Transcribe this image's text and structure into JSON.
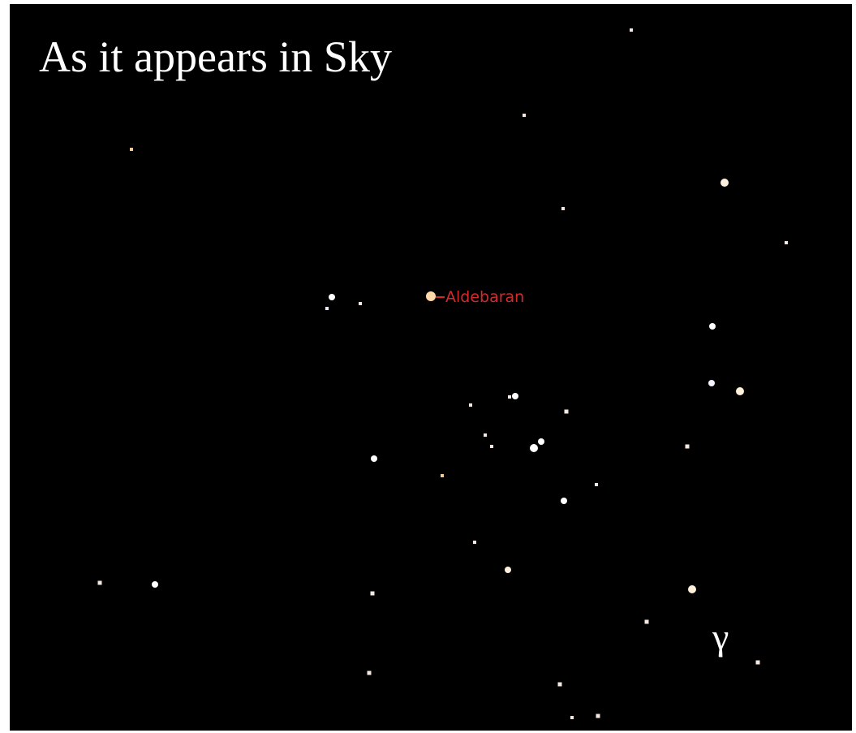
{
  "title": "As it appears in Sky",
  "star_label": "Aldebaran",
  "greek_label": "γ"
}
